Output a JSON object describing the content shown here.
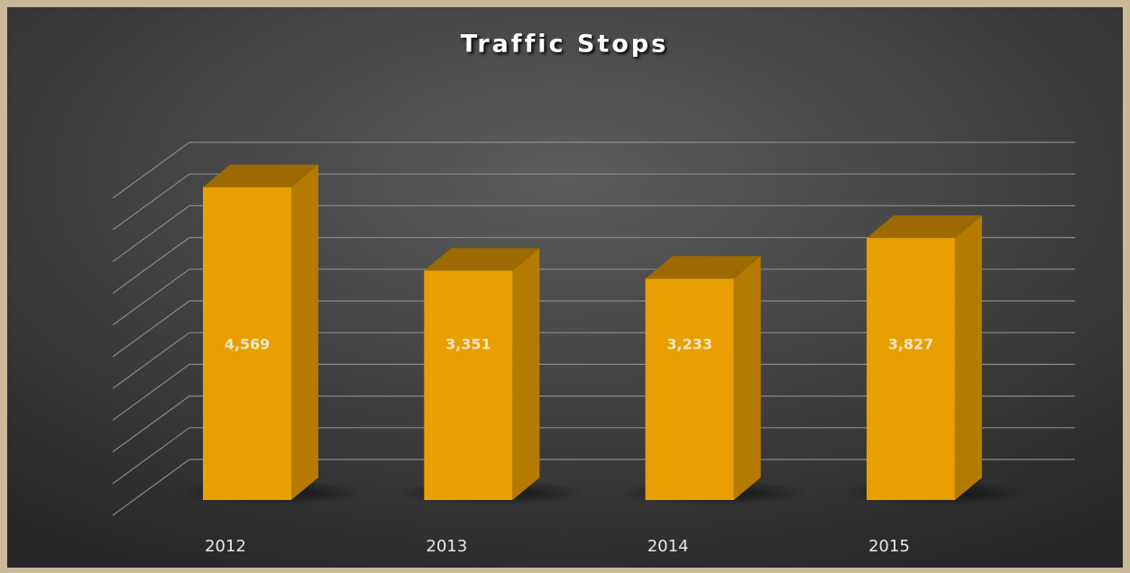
{
  "chart_data": {
    "type": "bar3d",
    "title": "Traffic Stops",
    "categories": [
      "2012",
      "2013",
      "2014",
      "2015"
    ],
    "values": [
      4569,
      3351,
      3233,
      3827
    ],
    "value_labels": [
      "4,569",
      "3,351",
      "3,233",
      "3,827"
    ],
    "color": "#e89f00",
    "ylim": [
      0,
      5000
    ],
    "grid": true
  }
}
